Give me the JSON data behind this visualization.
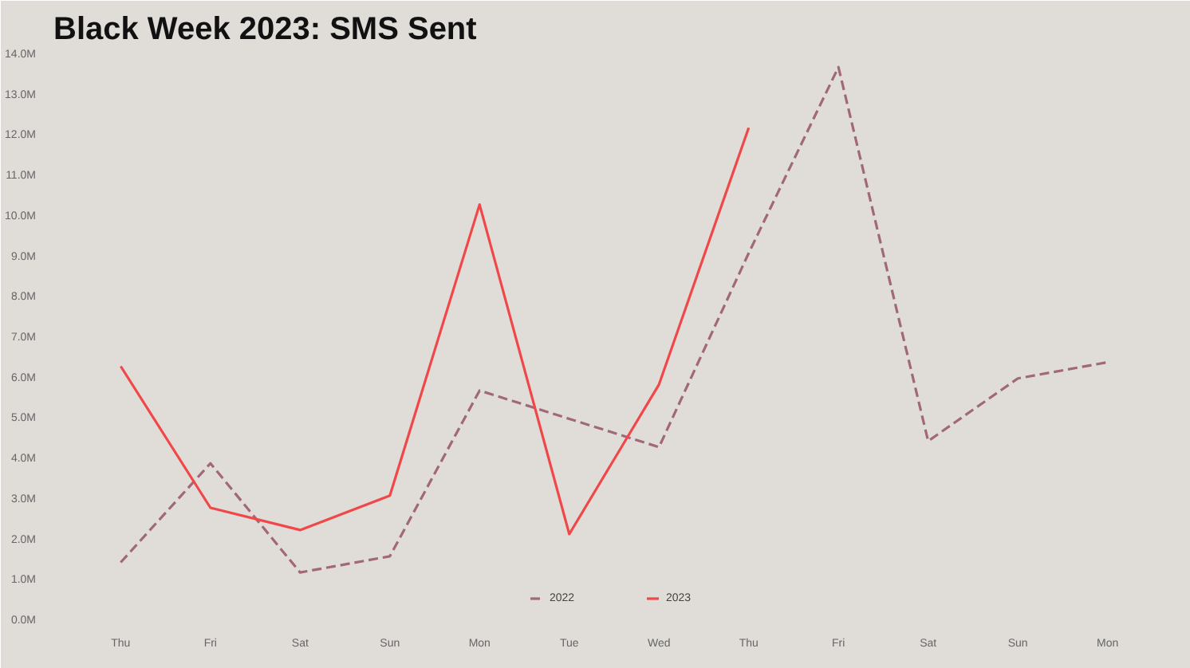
{
  "chart_data": {
    "type": "line",
    "title": "Black Week 2023: SMS Sent",
    "categories": [
      "Thu",
      "Fri",
      "Sat",
      "Sun",
      "Mon",
      "Tue",
      "Wed",
      "Thu",
      "Fri",
      "Sat",
      "Sun",
      "Mon"
    ],
    "series": [
      {
        "name": "2022",
        "color": "#a06878",
        "line_style": "dashed",
        "values": [
          1.45,
          3.9,
          1.2,
          1.6,
          5.7,
          5.0,
          4.3,
          9.1,
          13.7,
          4.45,
          6.0,
          6.4
        ]
      },
      {
        "name": "2023",
        "color": "#f04848",
        "line_style": "solid",
        "values": [
          6.3,
          2.8,
          2.25,
          3.1,
          10.3,
          2.15,
          5.85,
          12.2,
          null,
          null,
          null,
          null
        ]
      }
    ],
    "ylim": [
      0,
      14
    ],
    "yticks": [
      {
        "value": 0,
        "label": "0.0M"
      },
      {
        "value": 1,
        "label": "1.0M"
      },
      {
        "value": 2,
        "label": "2.0M"
      },
      {
        "value": 3,
        "label": "3.0M"
      },
      {
        "value": 4,
        "label": "4.0M"
      },
      {
        "value": 5,
        "label": "5.0M"
      },
      {
        "value": 6,
        "label": "6.0M"
      },
      {
        "value": 7,
        "label": "7.0M"
      },
      {
        "value": 8,
        "label": "8.0M"
      },
      {
        "value": 9,
        "label": "9.0M"
      },
      {
        "value": 10,
        "label": "10.0M"
      },
      {
        "value": 11,
        "label": "11.0M"
      },
      {
        "value": 12,
        "label": "12.0M"
      },
      {
        "value": 13,
        "label": "13.0M"
      },
      {
        "value": 14,
        "label": "14.0M"
      }
    ],
    "grid": false,
    "legend": "bottom",
    "marker": "none"
  }
}
